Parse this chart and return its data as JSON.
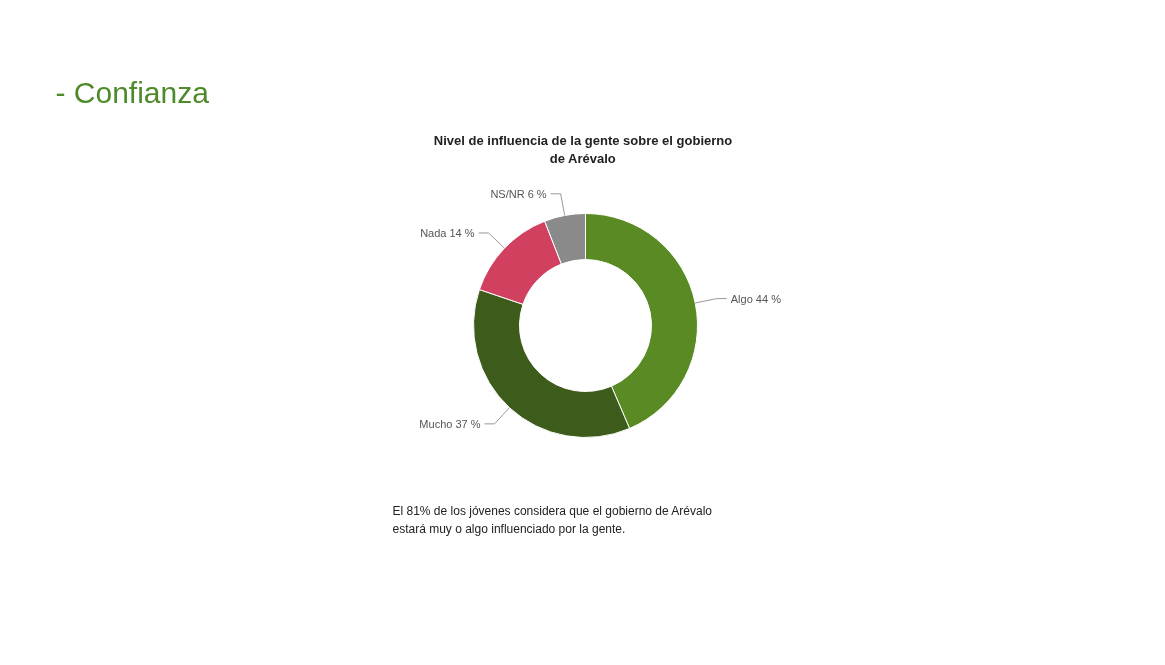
{
  "chart_data": {
    "type": "donut",
    "title": "Nivel de influencia de la gente sobre el gobierno\nde Arévalo",
    "categories": [
      "Algo",
      "Mucho",
      "Nada",
      "NS/NR"
    ],
    "values": [
      44,
      37,
      14,
      6
    ],
    "value_labels": [
      "44 %",
      "37 %",
      "14 %",
      "6 %"
    ],
    "colors": [
      "#5a8a23",
      "#3d5c1c",
      "#d2405f",
      "#8a8a8a"
    ],
    "annotations": [
      "- Confianza",
      "El 81% de los jóvenes considera que el gobierno de Arévalo\nestará muy o algo influenciado por la gente."
    ]
  }
}
